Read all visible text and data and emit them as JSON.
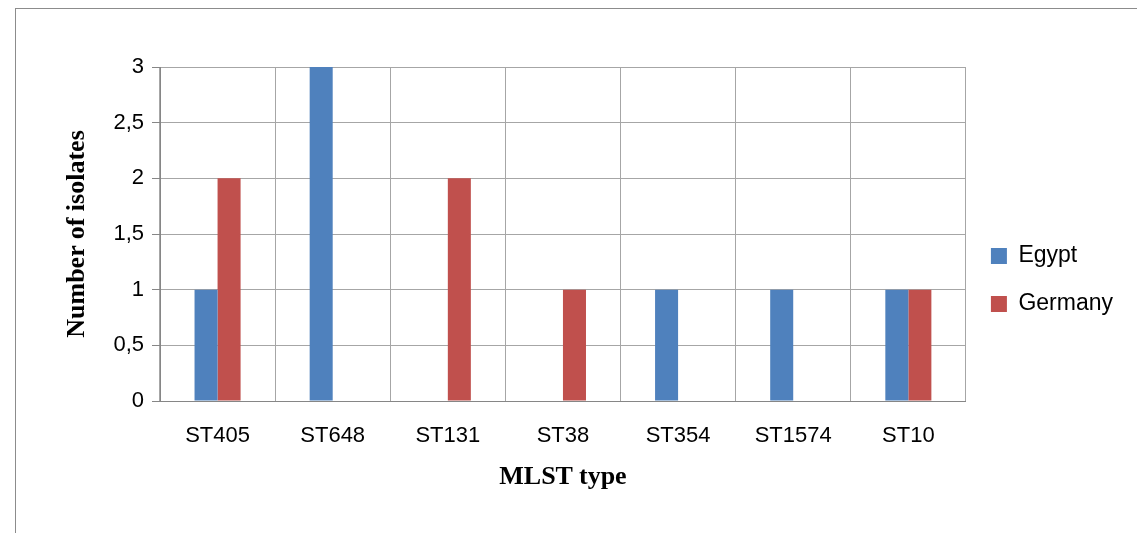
{
  "chart_data": {
    "type": "bar",
    "xlabel": "MLST type",
    "ylabel": "Number of isolates",
    "categories": [
      "ST405",
      "ST648",
      "ST131",
      "ST38",
      "ST354",
      "ST1574",
      "ST10"
    ],
    "series": [
      {
        "name": "Egypt",
        "color": "#4f81bd",
        "values": [
          1,
          3,
          0,
          0,
          1,
          1,
          1
        ]
      },
      {
        "name": "Germany",
        "color": "#c0504d",
        "values": [
          2,
          0,
          2,
          1,
          0,
          0,
          1
        ]
      }
    ],
    "ylim": [
      0,
      3
    ],
    "yticks": [
      0,
      {
        "value": 0.5,
        "label": "0,5"
      },
      1,
      {
        "value": 1.5,
        "label": "1,5"
      },
      2,
      {
        "value": 2.5,
        "label": "2,5"
      },
      3
    ],
    "grid": true,
    "legend": "right"
  }
}
